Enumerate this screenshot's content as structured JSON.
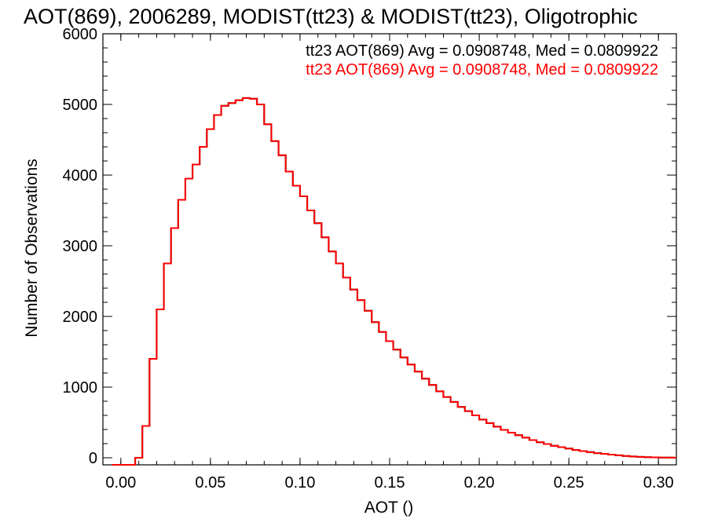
{
  "chart_data": {
    "type": "histogram",
    "title": "AOT(869), 2006289, MODIST(tt23) & MODIST(tt23), Oligotrophic",
    "xlabel": "AOT ()",
    "ylabel": "Number of Observations",
    "xlim": [
      -0.01,
      0.31
    ],
    "ylim": [
      -100,
      6000
    ],
    "x_ticks": [
      0.0,
      0.05,
      0.1,
      0.15,
      0.2,
      0.25,
      0.3
    ],
    "x_tick_labels": [
      "0.00",
      "0.05",
      "0.10",
      "0.15",
      "0.20",
      "0.25",
      "0.30"
    ],
    "y_ticks": [
      0,
      1000,
      2000,
      3000,
      4000,
      5000,
      6000
    ],
    "y_tick_labels": [
      "0",
      "1000",
      "2000",
      "3000",
      "4000",
      "5000",
      "6000"
    ],
    "grid": false,
    "legend_placement": "top-right",
    "series": [
      {
        "name": "tt23 AOT(869) Avg = 0.0908748, Med = 0.0809922",
        "color": "#000000",
        "x": [
          -0.005,
          0.008,
          0.012,
          0.016,
          0.02,
          0.024,
          0.028,
          0.032,
          0.036,
          0.04,
          0.044,
          0.048,
          0.052,
          0.056,
          0.06,
          0.064,
          0.068,
          0.072,
          0.076,
          0.08,
          0.084,
          0.088,
          0.092,
          0.096,
          0.1,
          0.104,
          0.108,
          0.112,
          0.116,
          0.12,
          0.124,
          0.128,
          0.132,
          0.136,
          0.14,
          0.144,
          0.148,
          0.152,
          0.156,
          0.16,
          0.164,
          0.168,
          0.172,
          0.176,
          0.18,
          0.184,
          0.188,
          0.192,
          0.196,
          0.2,
          0.204,
          0.208,
          0.212,
          0.216,
          0.22,
          0.224,
          0.228,
          0.232,
          0.236,
          0.24,
          0.244,
          0.248,
          0.252,
          0.256,
          0.26,
          0.264,
          0.268,
          0.272,
          0.276,
          0.28,
          0.284,
          0.288,
          0.292,
          0.296,
          0.3,
          0.304,
          0.308
        ],
        "values": [
          -100,
          0,
          450,
          1400,
          2100,
          2750,
          3250,
          3650,
          3950,
          4150,
          4400,
          4650,
          4850,
          4980,
          5020,
          5060,
          5090,
          5080,
          5000,
          4720,
          4480,
          4280,
          4050,
          3850,
          3700,
          3500,
          3320,
          3120,
          2920,
          2750,
          2550,
          2380,
          2230,
          2080,
          1920,
          1780,
          1650,
          1530,
          1420,
          1320,
          1220,
          1120,
          1030,
          940,
          860,
          790,
          720,
          660,
          600,
          540,
          490,
          440,
          395,
          355,
          320,
          285,
          250,
          220,
          195,
          170,
          150,
          130,
          110,
          95,
          80,
          65,
          55,
          45,
          35,
          25,
          18,
          12,
          8,
          5,
          3,
          2,
          1
        ]
      },
      {
        "name": "tt23 AOT(869) Avg = 0.0908748, Med = 0.0809922",
        "color": "#ff0000",
        "x": [
          -0.005,
          0.008,
          0.012,
          0.016,
          0.02,
          0.024,
          0.028,
          0.032,
          0.036,
          0.04,
          0.044,
          0.048,
          0.052,
          0.056,
          0.06,
          0.064,
          0.068,
          0.072,
          0.076,
          0.08,
          0.084,
          0.088,
          0.092,
          0.096,
          0.1,
          0.104,
          0.108,
          0.112,
          0.116,
          0.12,
          0.124,
          0.128,
          0.132,
          0.136,
          0.14,
          0.144,
          0.148,
          0.152,
          0.156,
          0.16,
          0.164,
          0.168,
          0.172,
          0.176,
          0.18,
          0.184,
          0.188,
          0.192,
          0.196,
          0.2,
          0.204,
          0.208,
          0.212,
          0.216,
          0.22,
          0.224,
          0.228,
          0.232,
          0.236,
          0.24,
          0.244,
          0.248,
          0.252,
          0.256,
          0.26,
          0.264,
          0.268,
          0.272,
          0.276,
          0.28,
          0.284,
          0.288,
          0.292,
          0.296,
          0.3,
          0.304,
          0.308
        ],
        "values": [
          -100,
          0,
          450,
          1400,
          2100,
          2750,
          3250,
          3650,
          3950,
          4150,
          4400,
          4650,
          4850,
          4980,
          5020,
          5060,
          5090,
          5080,
          5000,
          4720,
          4480,
          4280,
          4050,
          3850,
          3700,
          3500,
          3320,
          3120,
          2920,
          2750,
          2550,
          2380,
          2230,
          2080,
          1920,
          1780,
          1650,
          1530,
          1420,
          1320,
          1220,
          1120,
          1030,
          940,
          860,
          790,
          720,
          660,
          600,
          540,
          490,
          440,
          395,
          355,
          320,
          285,
          250,
          220,
          195,
          170,
          150,
          130,
          110,
          95,
          80,
          65,
          55,
          45,
          35,
          25,
          18,
          12,
          8,
          5,
          3,
          2,
          1
        ]
      }
    ]
  }
}
